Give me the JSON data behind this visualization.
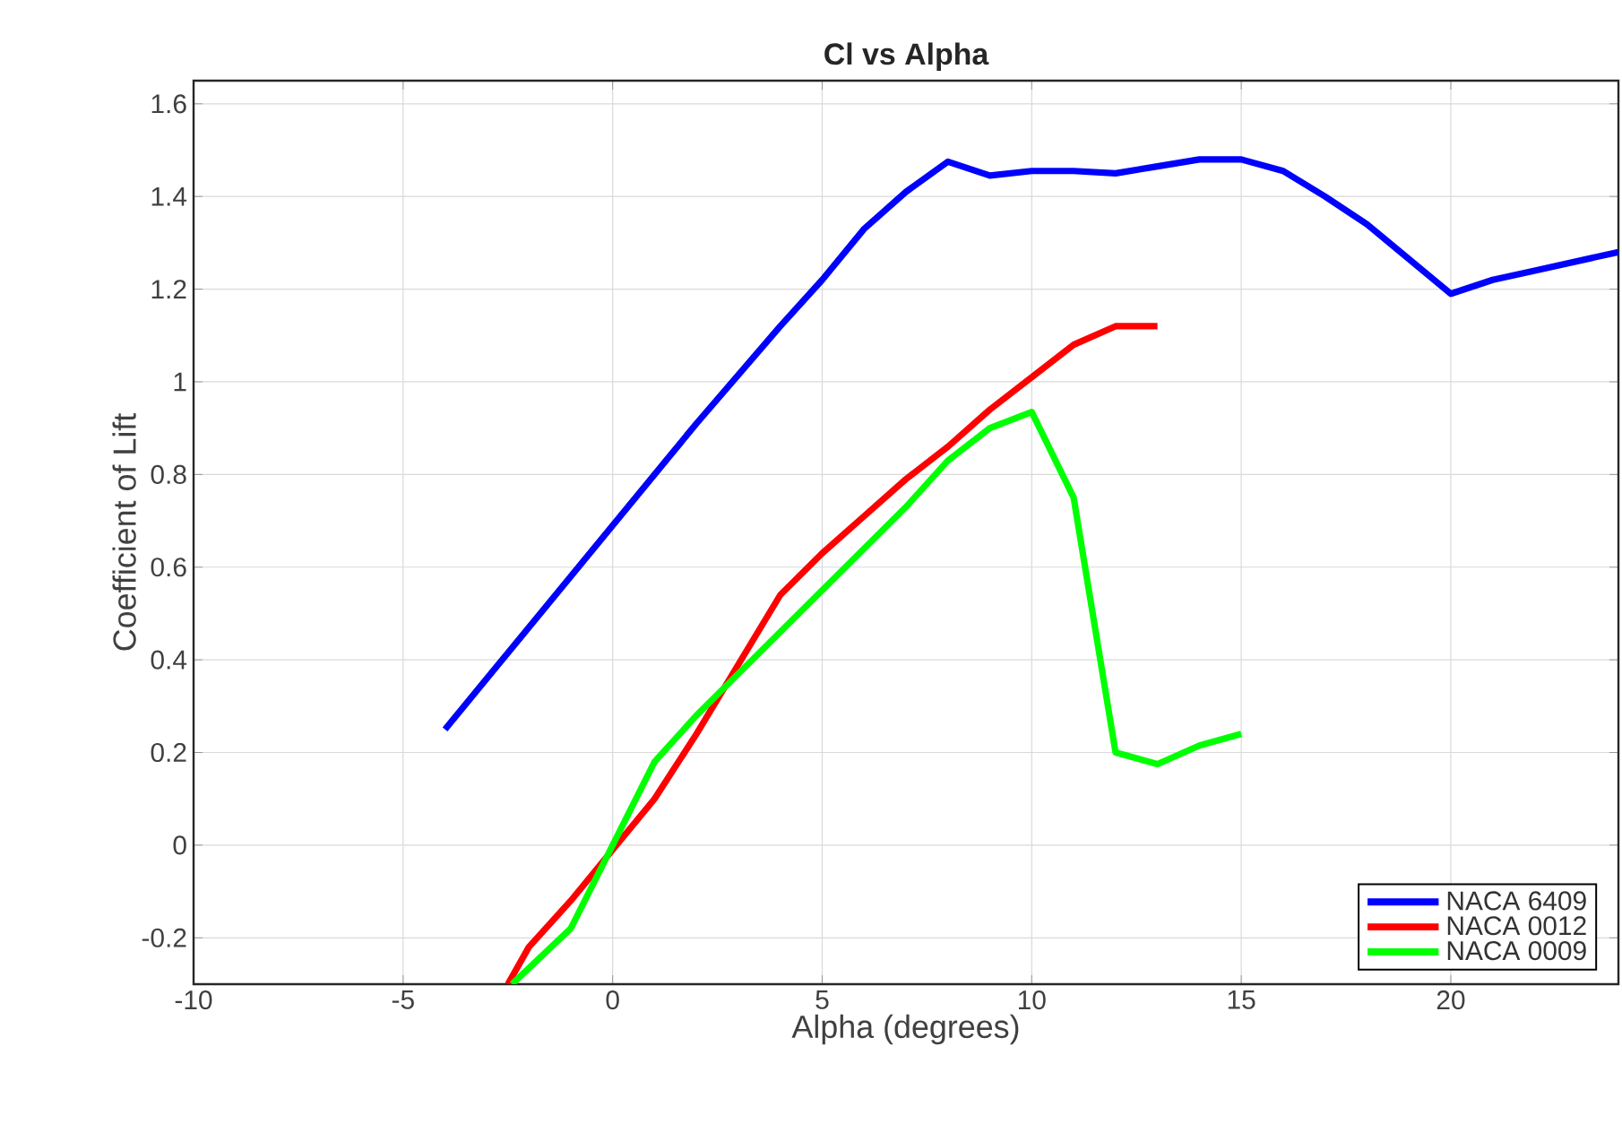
{
  "chart_data": {
    "type": "line",
    "title": "Cl vs Alpha",
    "xlabel": "Alpha (degrees)",
    "ylabel": "Coefficient of Lift",
    "xlim": [
      -10,
      24
    ],
    "ylim": [
      -0.3,
      1.65
    ],
    "xticks": [
      -10,
      -5,
      0,
      5,
      10,
      15,
      20
    ],
    "yticks": [
      -0.2,
      0,
      0.2,
      0.4,
      0.6,
      0.8,
      1,
      1.2,
      1.4,
      1.6
    ],
    "grid": true,
    "legend": "bottom right",
    "marker": "none",
    "line_style": "solid",
    "series": [
      {
        "name": "NACA 6409",
        "color": "#0000ff",
        "x": [
          -4,
          -2,
          0,
          2,
          4,
          5,
          6,
          7,
          8,
          9,
          10,
          11,
          12,
          13,
          14,
          15,
          16,
          17,
          18,
          20,
          21,
          22,
          24
        ],
        "values": [
          0.25,
          0.47,
          0.69,
          0.91,
          1.12,
          1.22,
          1.33,
          1.41,
          1.475,
          1.445,
          1.455,
          1.455,
          1.45,
          1.465,
          1.48,
          1.48,
          1.455,
          1.4,
          1.34,
          1.19,
          1.22,
          1.24,
          1.28
        ]
      },
      {
        "name": "NACA 0012",
        "color": "#ff0000",
        "x": [
          -2.5,
          -2,
          -1,
          0,
          1,
          2,
          3,
          4,
          5,
          6,
          7,
          8,
          9,
          10,
          11,
          12,
          13
        ],
        "values": [
          -0.3,
          -0.22,
          -0.12,
          -0.01,
          0.1,
          0.24,
          0.39,
          0.54,
          0.63,
          0.71,
          0.79,
          0.86,
          0.94,
          1.01,
          1.08,
          1.12,
          1.12
        ]
      },
      {
        "name": "NACA 0009",
        "color": "#00ff00",
        "x": [
          -2.4,
          -1,
          0,
          1,
          2,
          3,
          4,
          5,
          6,
          7,
          8,
          9,
          10,
          11,
          12,
          13,
          14,
          15
        ],
        "values": [
          -0.3,
          -0.18,
          0.0,
          0.18,
          0.28,
          0.37,
          0.46,
          0.55,
          0.64,
          0.73,
          0.83,
          0.9,
          0.935,
          0.75,
          0.2,
          0.175,
          0.215,
          0.24
        ]
      }
    ]
  }
}
